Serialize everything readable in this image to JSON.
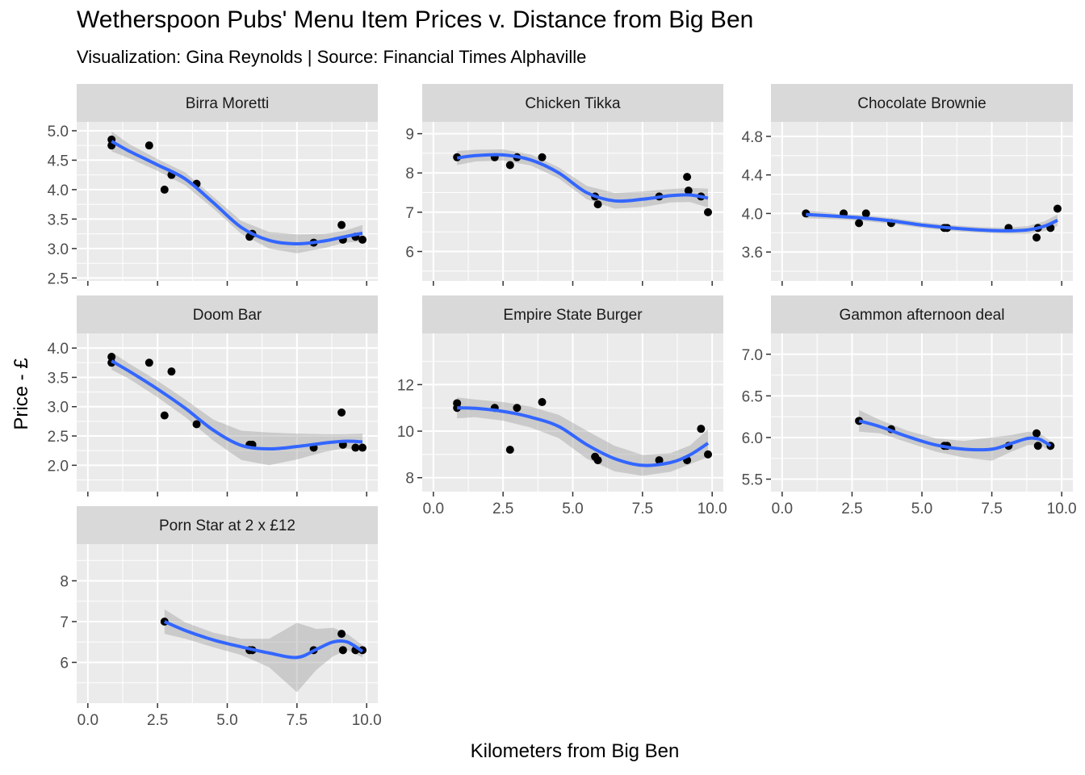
{
  "chart_data": {
    "type": "scatter",
    "title": "Wetherspoon Pubs' Menu Item Prices  v. Distance from Big Ben",
    "subtitle": "Visualization: Gina Reynolds | Source: Financial Times Alphaville",
    "xlabel": "Kilometers from Big Ben",
    "ylabel": "Price - £",
    "xlim": [
      -0.4,
      10.4
    ],
    "x_ticks": [
      "0.0",
      "2.5",
      "5.0",
      "7.5",
      "10.0"
    ],
    "x_tick_values": [
      0,
      2.5,
      5,
      7.5,
      10
    ],
    "colors": {
      "points": "#000000",
      "smooth": "#3366FF",
      "band": "#999999",
      "panel": "#EBEBEB",
      "strip": "#D9D9D9",
      "grid": "#FFFFFF"
    },
    "panels": [
      {
        "name": "Birra Moretti",
        "ylim": [
          2.45,
          5.15
        ],
        "y_ticks": [
          "2.5",
          "3.0",
          "3.5",
          "4.0",
          "4.5",
          "5.0"
        ],
        "y_tick_values": [
          2.5,
          3.0,
          3.5,
          4.0,
          4.5,
          5.0
        ],
        "points": [
          [
            0.85,
            4.85
          ],
          [
            0.85,
            4.75
          ],
          [
            2.2,
            4.75
          ],
          [
            2.75,
            4.0
          ],
          [
            3.0,
            4.25
          ],
          [
            3.9,
            4.1
          ],
          [
            5.8,
            3.2
          ],
          [
            5.9,
            3.25
          ],
          [
            8.1,
            3.1
          ],
          [
            9.1,
            3.4
          ],
          [
            9.15,
            3.15
          ],
          [
            9.6,
            3.2
          ],
          [
            9.85,
            3.15
          ]
        ],
        "smooth": [
          [
            0.85,
            4.82
          ],
          [
            1.5,
            4.65
          ],
          [
            2.5,
            4.42
          ],
          [
            3.5,
            4.18
          ],
          [
            4.5,
            3.78
          ],
          [
            5.5,
            3.36
          ],
          [
            6.5,
            3.14
          ],
          [
            7.5,
            3.08
          ],
          [
            8.5,
            3.13
          ],
          [
            9.2,
            3.2
          ],
          [
            9.85,
            3.26
          ]
        ],
        "band_hw": [
          0.17,
          0.12,
          0.1,
          0.11,
          0.1,
          0.11,
          0.14,
          0.16,
          0.12,
          0.1,
          0.14
        ]
      },
      {
        "name": "Chicken Tikka",
        "ylim": [
          5.25,
          9.3
        ],
        "y_ticks": [
          "6",
          "7",
          "8",
          "9"
        ],
        "y_tick_values": [
          6,
          7,
          8,
          9
        ],
        "points": [
          [
            0.85,
            8.4
          ],
          [
            2.2,
            8.4
          ],
          [
            2.75,
            8.2
          ],
          [
            3.0,
            8.4
          ],
          [
            3.9,
            8.4
          ],
          [
            5.8,
            7.4
          ],
          [
            5.9,
            7.2
          ],
          [
            8.1,
            7.4
          ],
          [
            9.1,
            7.9
          ],
          [
            9.15,
            7.55
          ],
          [
            9.6,
            7.4
          ],
          [
            9.85,
            7.0
          ]
        ],
        "smooth": [
          [
            0.85,
            8.38
          ],
          [
            1.5,
            8.44
          ],
          [
            2.5,
            8.46
          ],
          [
            3.5,
            8.33
          ],
          [
            4.5,
            8.0
          ],
          [
            5.5,
            7.5
          ],
          [
            6.5,
            7.29
          ],
          [
            7.5,
            7.33
          ],
          [
            8.5,
            7.42
          ],
          [
            9.2,
            7.44
          ],
          [
            9.85,
            7.36
          ]
        ],
        "band_hw": [
          0.18,
          0.15,
          0.14,
          0.14,
          0.14,
          0.17,
          0.2,
          0.2,
          0.17,
          0.18,
          0.24
        ]
      },
      {
        "name": "Chocolate Brownie",
        "ylim": [
          3.3,
          4.95
        ],
        "y_ticks": [
          "3.6",
          "4.0",
          "4.4",
          "4.8"
        ],
        "y_tick_values": [
          3.6,
          4.0,
          4.4,
          4.8
        ],
        "points": [
          [
            0.85,
            4.0
          ],
          [
            2.2,
            4.0
          ],
          [
            2.75,
            3.9
          ],
          [
            3.0,
            4.0
          ],
          [
            3.9,
            3.9
          ],
          [
            5.8,
            3.85
          ],
          [
            5.9,
            3.85
          ],
          [
            8.1,
            3.85
          ],
          [
            9.1,
            3.75
          ],
          [
            9.15,
            3.85
          ],
          [
            9.6,
            3.85
          ],
          [
            9.85,
            4.05
          ]
        ],
        "smooth": [
          [
            0.85,
            3.99
          ],
          [
            2.0,
            3.97
          ],
          [
            3.0,
            3.95
          ],
          [
            4.0,
            3.92
          ],
          [
            5.0,
            3.88
          ],
          [
            6.0,
            3.85
          ],
          [
            7.0,
            3.83
          ],
          [
            8.0,
            3.82
          ],
          [
            8.8,
            3.83
          ],
          [
            9.4,
            3.87
          ],
          [
            9.85,
            3.93
          ]
        ],
        "band_hw": [
          0.04,
          0.03,
          0.03,
          0.03,
          0.03,
          0.03,
          0.03,
          0.03,
          0.04,
          0.05,
          0.06
        ]
      },
      {
        "name": "Doom Bar",
        "ylim": [
          1.55,
          4.25
        ],
        "y_ticks": [
          "2.0",
          "2.5",
          "3.0",
          "3.5",
          "4.0"
        ],
        "y_tick_values": [
          2.0,
          2.5,
          3.0,
          3.5,
          4.0
        ],
        "points": [
          [
            0.85,
            3.85
          ],
          [
            0.85,
            3.75
          ],
          [
            2.2,
            3.75
          ],
          [
            2.75,
            2.85
          ],
          [
            3.0,
            3.6
          ],
          [
            3.9,
            2.7
          ],
          [
            5.8,
            2.35
          ],
          [
            5.9,
            2.35
          ],
          [
            8.1,
            2.3
          ],
          [
            9.1,
            2.9
          ],
          [
            9.15,
            2.35
          ],
          [
            9.6,
            2.3
          ],
          [
            9.85,
            2.3
          ]
        ],
        "smooth": [
          [
            0.85,
            3.78
          ],
          [
            1.5,
            3.6
          ],
          [
            2.5,
            3.3
          ],
          [
            3.5,
            2.97
          ],
          [
            4.5,
            2.6
          ],
          [
            5.5,
            2.34
          ],
          [
            6.5,
            2.28
          ],
          [
            7.5,
            2.32
          ],
          [
            8.5,
            2.38
          ],
          [
            9.2,
            2.41
          ],
          [
            9.85,
            2.4
          ]
        ],
        "band_hw": [
          0.15,
          0.13,
          0.14,
          0.15,
          0.18,
          0.25,
          0.28,
          0.22,
          0.15,
          0.12,
          0.14
        ]
      },
      {
        "name": "Empire State Burger",
        "ylim": [
          7.4,
          14.2
        ],
        "y_ticks": [
          "8",
          "10",
          "12"
        ],
        "y_tick_values": [
          8,
          10,
          12
        ],
        "points": [
          [
            0.85,
            11.2
          ],
          [
            0.85,
            11.0
          ],
          [
            2.2,
            11.0
          ],
          [
            2.75,
            9.2
          ],
          [
            3.0,
            11.0
          ],
          [
            3.9,
            11.25
          ],
          [
            5.8,
            8.9
          ],
          [
            5.9,
            8.75
          ],
          [
            8.1,
            8.75
          ],
          [
            9.1,
            8.75
          ],
          [
            9.6,
            10.1
          ],
          [
            9.85,
            9.0
          ]
        ],
        "smooth": [
          [
            0.85,
            11.0
          ],
          [
            1.5,
            10.98
          ],
          [
            2.5,
            10.85
          ],
          [
            3.5,
            10.6
          ],
          [
            4.5,
            10.2
          ],
          [
            5.5,
            9.42
          ],
          [
            6.5,
            8.82
          ],
          [
            7.5,
            8.53
          ],
          [
            8.5,
            8.65
          ],
          [
            9.2,
            8.98
          ],
          [
            9.85,
            9.48
          ]
        ],
        "band_hw": [
          0.45,
          0.38,
          0.4,
          0.45,
          0.5,
          0.6,
          0.55,
          0.45,
          0.4,
          0.4,
          0.6
        ]
      },
      {
        "name": "Gammon afternoon deal",
        "ylim": [
          5.35,
          7.25
        ],
        "y_ticks": [
          "5.5",
          "6.0",
          "6.5",
          "7.0"
        ],
        "y_tick_values": [
          5.5,
          6.0,
          6.5,
          7.0
        ],
        "points": [
          [
            2.75,
            6.2
          ],
          [
            3.9,
            6.1
          ],
          [
            5.8,
            5.9
          ],
          [
            5.9,
            5.9
          ],
          [
            8.1,
            5.9
          ],
          [
            9.1,
            6.05
          ],
          [
            9.15,
            5.9
          ],
          [
            9.6,
            5.9
          ]
        ],
        "smooth": [
          [
            2.75,
            6.2
          ],
          [
            3.5,
            6.13
          ],
          [
            4.5,
            6.01
          ],
          [
            5.5,
            5.91
          ],
          [
            6.5,
            5.86
          ],
          [
            7.5,
            5.86
          ],
          [
            8.2,
            5.93
          ],
          [
            8.8,
            5.99
          ],
          [
            9.2,
            5.98
          ],
          [
            9.6,
            5.9
          ]
        ],
        "band_hw": [
          0.13,
          0.08,
          0.07,
          0.08,
          0.1,
          0.14,
          0.1,
          0.08,
          0.07,
          0.06
        ]
      },
      {
        "name": "Porn Star at 2 x £12",
        "ylim": [
          5.0,
          8.9
        ],
        "y_ticks": [
          "6",
          "7",
          "8"
        ],
        "y_tick_values": [
          6,
          7,
          8
        ],
        "points": [
          [
            2.75,
            7.0
          ],
          [
            5.8,
            6.3
          ],
          [
            5.9,
            6.3
          ],
          [
            8.1,
            6.3
          ],
          [
            9.1,
            6.7
          ],
          [
            9.15,
            6.3
          ],
          [
            9.6,
            6.3
          ],
          [
            9.85,
            6.3
          ]
        ],
        "smooth": [
          [
            2.75,
            7.0
          ],
          [
            3.5,
            6.78
          ],
          [
            4.5,
            6.55
          ],
          [
            5.5,
            6.38
          ],
          [
            6.5,
            6.23
          ],
          [
            7.5,
            6.12
          ],
          [
            8.2,
            6.32
          ],
          [
            8.8,
            6.5
          ],
          [
            9.3,
            6.5
          ],
          [
            9.85,
            6.27
          ]
        ],
        "band_hw": [
          0.3,
          0.2,
          0.18,
          0.2,
          0.35,
          0.85,
          0.5,
          0.35,
          0.2,
          0.15
        ]
      }
    ]
  }
}
